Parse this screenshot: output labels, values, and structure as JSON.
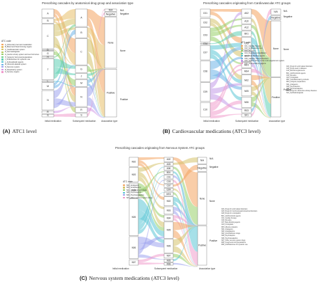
{
  "panels": [
    {
      "id": "A",
      "title": "Prescribing cascades by anatomical drug group and association type",
      "caption_letter": "(A)",
      "caption_text": "ATC1 level",
      "axis": [
        "Initial medication",
        "Subsequent medication",
        "Association type"
      ],
      "initial_nodes": [
        "A",
        "B",
        "C",
        "D",
        "G",
        "H",
        "J",
        "L",
        "M",
        "N",
        "R",
        "S"
      ],
      "subsequent_nodes": [
        "A",
        "B",
        "C",
        "G",
        "J",
        "M",
        "N",
        "R",
        "S"
      ],
      "assoc_nodes": [
        "N/A",
        "Negative",
        "None",
        "Positive"
      ],
      "legend_title": "ATC code",
      "legend": [
        {
          "label": "A_Alimentary tract and metabolism",
          "color": "#f4a460"
        },
        {
          "label": "B_Blood and blood forming organs",
          "color": "#e8c06a"
        },
        {
          "label": "C_Cardiovascular system",
          "color": "#d6c26b"
        },
        {
          "label": "D_Dermatologicals",
          "color": "#b7c95f"
        },
        {
          "label": "G_Genito urinary system and sex hormones",
          "color": "#98cf6a"
        },
        {
          "label": "H_Systemic hormonal preparations",
          "color": "#6fcf8c"
        },
        {
          "label": "J_Antiinfectives for systemic use",
          "color": "#5fcfb4"
        },
        {
          "label": "L_Antineoplastic agents",
          "color": "#5cc6d6"
        },
        {
          "label": "M_Musculo-skeletal system",
          "color": "#6fb4e8"
        },
        {
          "label": "N_Nervous system",
          "color": "#9fa4ef"
        },
        {
          "label": "R_Respiratory system",
          "color": "#d49be8"
        },
        {
          "label": "S_Sensory organs",
          "color": "#f09ccc"
        }
      ]
    },
    {
      "id": "B",
      "title": "Prescribing cascades originating from Cardiovascular ATC groups",
      "caption_letter": "(B)",
      "caption_text": "Cardiovascular medications (ATC3 level)",
      "axis": [
        "Initial medication",
        "Subsequent medication",
        "Association type"
      ],
      "initial_nodes": [
        "C01",
        "C02",
        "C03",
        "C04",
        "C07",
        "C08",
        "C09",
        "C10"
      ],
      "subsequent_nodes": [
        "A02",
        "A10",
        "A12",
        "B01",
        "C03",
        "G04",
        "M01",
        "M04",
        "N02",
        "N05",
        "N06",
        "R03",
        "S01"
      ],
      "assoc_nodes": [
        "N/A",
        "Negative",
        "None",
        "Positive"
      ],
      "legend_title": "ATC code",
      "legend": [
        {
          "label": "C01_Cardiac therapy",
          "color": "#f4a460"
        },
        {
          "label": "C02_Antihypertensives",
          "color": "#d6c26b"
        },
        {
          "label": "C03_Diuretics",
          "color": "#98cf6a"
        },
        {
          "label": "C04_Peripheral vasodilators",
          "color": "#5fcfb4"
        },
        {
          "label": "C07_Beta blocking agents",
          "color": "#5cc6d6"
        },
        {
          "label": "C08_Calcium channel blockers",
          "color": "#6fb4e8"
        },
        {
          "label": "C09_Agents acting on the renin-angiotensin system",
          "color": "#c39be8"
        },
        {
          "label": "C10_Lipid modifying agents",
          "color": "#f09ccc"
        }
      ],
      "notes": [
        "A02_Drugs for acid related disorders",
        "A10_Drugs used in diabetes",
        "A12_Mineral supplements",
        "B01_Antithrombotic agents",
        "C03_Diuretics",
        "G04_Urologicals",
        "M01_Antiinflammatory products",
        "M04_Antigout preparations",
        "N02_Analgesics",
        "N05_Psycholeptics",
        "N06_Psychoanaleptics",
        "R03_Drugs for obstructive airway diseases",
        "S01_Ophthalmologicals"
      ]
    },
    {
      "id": "C",
      "title": "Prescribing cascades originating from Nervous System ATC groups",
      "caption_letter": "(C)",
      "caption_text": "Nervous system medications (ATC3 level)",
      "axis": [
        "Initial medication",
        "Subsequent medication",
        "Association type"
      ],
      "initial_nodes": [
        "N02",
        "N03",
        "N04",
        "N05",
        "N06",
        "N07"
      ],
      "subsequent_nodes": [
        "A02",
        "A03",
        "A06",
        "B01",
        "C01",
        "C03",
        "C07",
        "G04",
        "M03",
        "N02",
        "N03",
        "N04",
        "N05",
        "N06",
        "N07",
        "R05",
        "R06"
      ],
      "assoc_nodes": [
        "N/A",
        "Negative",
        "None",
        "Positive"
      ],
      "legend_title": "ATC code",
      "legend": [
        {
          "label": "N02_Analgesics",
          "color": "#f4a460"
        },
        {
          "label": "N03_Antiepileptics",
          "color": "#d6c26b"
        },
        {
          "label": "N04_Anti-Parkinson drugs",
          "color": "#98cf6a"
        },
        {
          "label": "N05_Psycholeptics",
          "color": "#5cc6d6"
        },
        {
          "label": "N06_Psychoanaleptics",
          "color": "#9fa4ef"
        },
        {
          "label": "N07_Other nervous system drugs",
          "color": "#f09ccc"
        }
      ],
      "notes": [
        "A02_Drugs for acid related disorders",
        "A03_Drugs for functional gastrointestinal disorders",
        "A06_Drugs for constipation",
        "B01_Antithrombotic agents",
        "C01_Cardiac therapy",
        "C03_Diuretics",
        "C07_Beta blocking agents",
        "G04_Urologicals",
        "M03_Muscle relaxants",
        "N02_Analgesics",
        "N03_Antiepileptics",
        "N04_Anti-Parkinson drugs",
        "N05_Psycholeptics",
        "N06_Psychoanaleptics",
        "N07_Other nervous system drugs",
        "R05_Cough and cold preparations",
        "R06_Antihistamines for systemic use"
      ]
    }
  ]
}
